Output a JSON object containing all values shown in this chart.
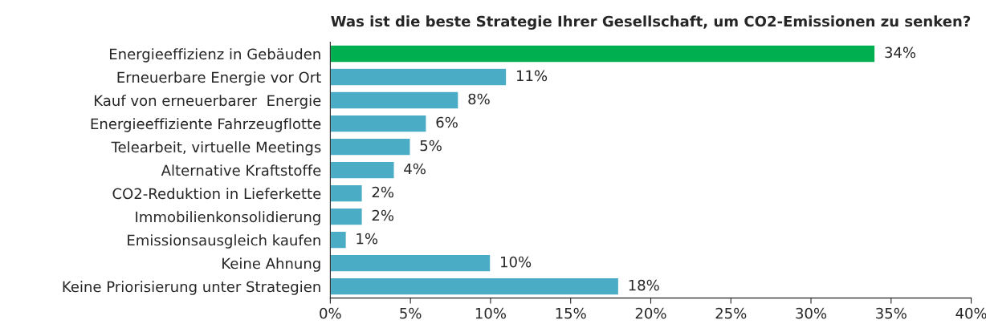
{
  "chart_data": {
    "type": "bar",
    "orientation": "horizontal",
    "title": "Was ist die beste Strategie Ihrer Gesellschaft, um CO2-Emissionen zu senken?",
    "categories": [
      "Energieeffizienz in Gebäuden",
      "Erneuerbare Energie vor Ort",
      "Kauf von erneuerbarer  Energie",
      "Energieeffiziente Fahrzeugflotte",
      "Telearbeit, virtuelle Meetings",
      "Alternative Kraftstoffe",
      "CO2-Reduktion in Lieferkette",
      "Immobilienkonsolidierung",
      "Emissionsausgleich kaufen",
      "Keine Ahnung",
      "Keine Priorisierung unter Strategien"
    ],
    "values": [
      34,
      11,
      8,
      6,
      5,
      4,
      2,
      2,
      1,
      10,
      18
    ],
    "value_labels": [
      "34%",
      "11%",
      "8%",
      "6%",
      "5%",
      "4%",
      "2%",
      "2%",
      "1%",
      "10%",
      "18%"
    ],
    "colors": [
      "#00b050",
      "#4bacc6",
      "#4bacc6",
      "#4bacc6",
      "#4bacc6",
      "#4bacc6",
      "#4bacc6",
      "#4bacc6",
      "#4bacc6",
      "#4bacc6",
      "#4bacc6"
    ],
    "xlim": [
      0,
      40
    ],
    "xticks": [
      {
        "value": 0,
        "label": "0%"
      },
      {
        "value": 5,
        "label": "5%"
      },
      {
        "value": 10,
        "label": "10%"
      },
      {
        "value": 15,
        "label": "15%"
      },
      {
        "value": 20,
        "label": "20%"
      },
      {
        "value": 25,
        "label": "25%"
      },
      {
        "value": 30,
        "label": "30%"
      },
      {
        "value": 35,
        "label": "35%"
      },
      {
        "value": 40,
        "label": "40%"
      }
    ],
    "grid": false,
    "legend": false
  }
}
